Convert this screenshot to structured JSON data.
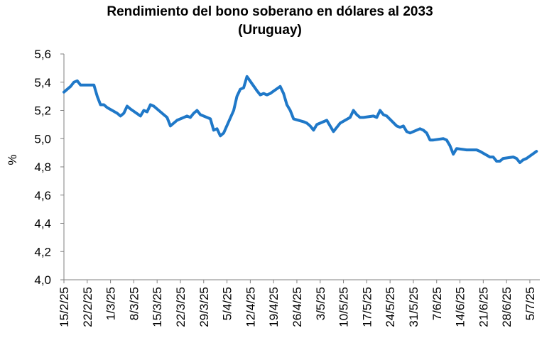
{
  "chart_data": {
    "type": "line",
    "title": "Rendimiento del bono soberano en dólares al 2033",
    "subtitle": "(Uruguay)",
    "xlabel": "",
    "ylabel": "%",
    "ylim": [
      4.0,
      5.6
    ],
    "yticks": [
      "4,0",
      "4,2",
      "4,4",
      "4,6",
      "4,8",
      "5,0",
      "5,2",
      "5,4",
      "5,6"
    ],
    "xticks": [
      "15/2/25",
      "22/2/25",
      "1/3/25",
      "8/3/25",
      "15/3/25",
      "22/3/25",
      "29/3/25",
      "5/4/25",
      "12/4/25",
      "19/4/25",
      "26/4/25",
      "3/5/25",
      "10/5/25",
      "17/5/25",
      "24/5/25",
      "31/5/25",
      "7/6/25",
      "14/6/25",
      "21/6/25",
      "28/6/25",
      "5/7/25"
    ],
    "grid": false,
    "legend": "none",
    "series": [
      {
        "color": "#1f78c8",
        "x": [
          "2025-02-15",
          "2025-02-17",
          "2025-02-18",
          "2025-02-19",
          "2025-02-20",
          "2025-02-21",
          "2025-02-24",
          "2025-02-25",
          "2025-02-26",
          "2025-02-27",
          "2025-02-28",
          "2025-03-03",
          "2025-03-04",
          "2025-03-05",
          "2025-03-06",
          "2025-03-07",
          "2025-03-10",
          "2025-03-11",
          "2025-03-12",
          "2025-03-13",
          "2025-03-14",
          "2025-03-17",
          "2025-03-18",
          "2025-03-19",
          "2025-03-20",
          "2025-03-21",
          "2025-03-24",
          "2025-03-25",
          "2025-03-26",
          "2025-03-27",
          "2025-03-28",
          "2025-03-31",
          "2025-04-01",
          "2025-04-02",
          "2025-04-03",
          "2025-04-04",
          "2025-04-07",
          "2025-04-08",
          "2025-04-09",
          "2025-04-10",
          "2025-04-11",
          "2025-04-14",
          "2025-04-15",
          "2025-04-16",
          "2025-04-17",
          "2025-04-18",
          "2025-04-21",
          "2025-04-22",
          "2025-04-23",
          "2025-04-24",
          "2025-04-25",
          "2025-04-28",
          "2025-04-29",
          "2025-04-30",
          "2025-05-01",
          "2025-05-02",
          "2025-05-05",
          "2025-05-06",
          "2025-05-07",
          "2025-05-08",
          "2025-05-09",
          "2025-05-12",
          "2025-05-13",
          "2025-05-14",
          "2025-05-15",
          "2025-05-16",
          "2025-05-19",
          "2025-05-20",
          "2025-05-21",
          "2025-05-22",
          "2025-05-23",
          "2025-05-26",
          "2025-05-27",
          "2025-05-28",
          "2025-05-29",
          "2025-05-30",
          "2025-06-02",
          "2025-06-03",
          "2025-06-04",
          "2025-06-05",
          "2025-06-06",
          "2025-06-09",
          "2025-06-10",
          "2025-06-11",
          "2025-06-12",
          "2025-06-13",
          "2025-06-16",
          "2025-06-17",
          "2025-06-18",
          "2025-06-19",
          "2025-06-20",
          "2025-06-23",
          "2025-06-24",
          "2025-06-25",
          "2025-06-26",
          "2025-06-27",
          "2025-06-30",
          "2025-07-01",
          "2025-07-02",
          "2025-07-03",
          "2025-07-04",
          "2025-07-07"
        ],
        "values": [
          5.33,
          5.37,
          5.4,
          5.41,
          5.38,
          5.38,
          5.38,
          5.3,
          5.24,
          5.24,
          5.22,
          5.18,
          5.16,
          5.18,
          5.23,
          5.21,
          5.16,
          5.2,
          5.19,
          5.24,
          5.23,
          5.17,
          5.15,
          5.09,
          5.11,
          5.13,
          5.16,
          5.15,
          5.18,
          5.2,
          5.17,
          5.14,
          5.06,
          5.07,
          5.02,
          5.04,
          5.2,
          5.3,
          5.35,
          5.36,
          5.44,
          5.34,
          5.31,
          5.32,
          5.31,
          5.32,
          5.37,
          5.32,
          5.24,
          5.2,
          5.14,
          5.12,
          5.11,
          5.09,
          5.06,
          5.1,
          5.13,
          5.09,
          5.05,
          5.08,
          5.11,
          5.15,
          5.2,
          5.17,
          5.15,
          5.15,
          5.16,
          5.15,
          5.2,
          5.17,
          5.16,
          5.09,
          5.08,
          5.09,
          5.05,
          5.04,
          5.07,
          5.06,
          5.04,
          4.99,
          4.99,
          5.0,
          4.99,
          4.95,
          4.89,
          4.93,
          4.92,
          4.92,
          4.92,
          4.92,
          4.91,
          4.87,
          4.87,
          4.84,
          4.84,
          4.86,
          4.87,
          4.86,
          4.83,
          4.85,
          4.86,
          4.91
        ]
      }
    ]
  }
}
